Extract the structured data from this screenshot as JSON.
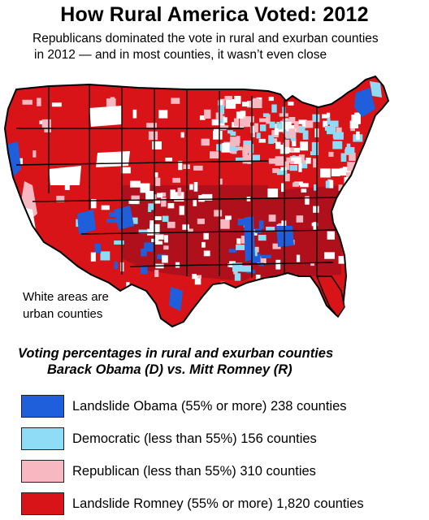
{
  "title": "How Rural America Voted: 2012",
  "subtitle": {
    "line1": "Republicans dominated the vote in rural and exurban counties",
    "line2": "in 2012 — and in most counties, it wasn’t even close"
  },
  "urban_note": {
    "line1": "White areas are",
    "line2": "urban counties"
  },
  "legend": {
    "title_line1": "Voting percentages in rural and exurban counties",
    "title_line2": "Barack Obama (D) vs. Mitt Romney (R)",
    "items": [
      {
        "label": "Landslide Obama (55% or more) 238 counties",
        "color": "#1f5fdc"
      },
      {
        "label": "Democratic (less than 55%) 156 counties",
        "color": "#8fdcf7"
      },
      {
        "label": "Republican (less than 55%) 310 counties",
        "color": "#f7b8c2"
      },
      {
        "label": "Landslide Romney (55% or more) 1,820 counties",
        "color": "#d81418"
      }
    ]
  },
  "map_colors": {
    "landslide_romney": "#d81418",
    "dark_romney": "#b0101c",
    "republican": "#f7b8c2",
    "democratic": "#8fdcf7",
    "landslide_obama": "#1f5fdc",
    "urban": "#ffffff",
    "border": "#000000"
  }
}
